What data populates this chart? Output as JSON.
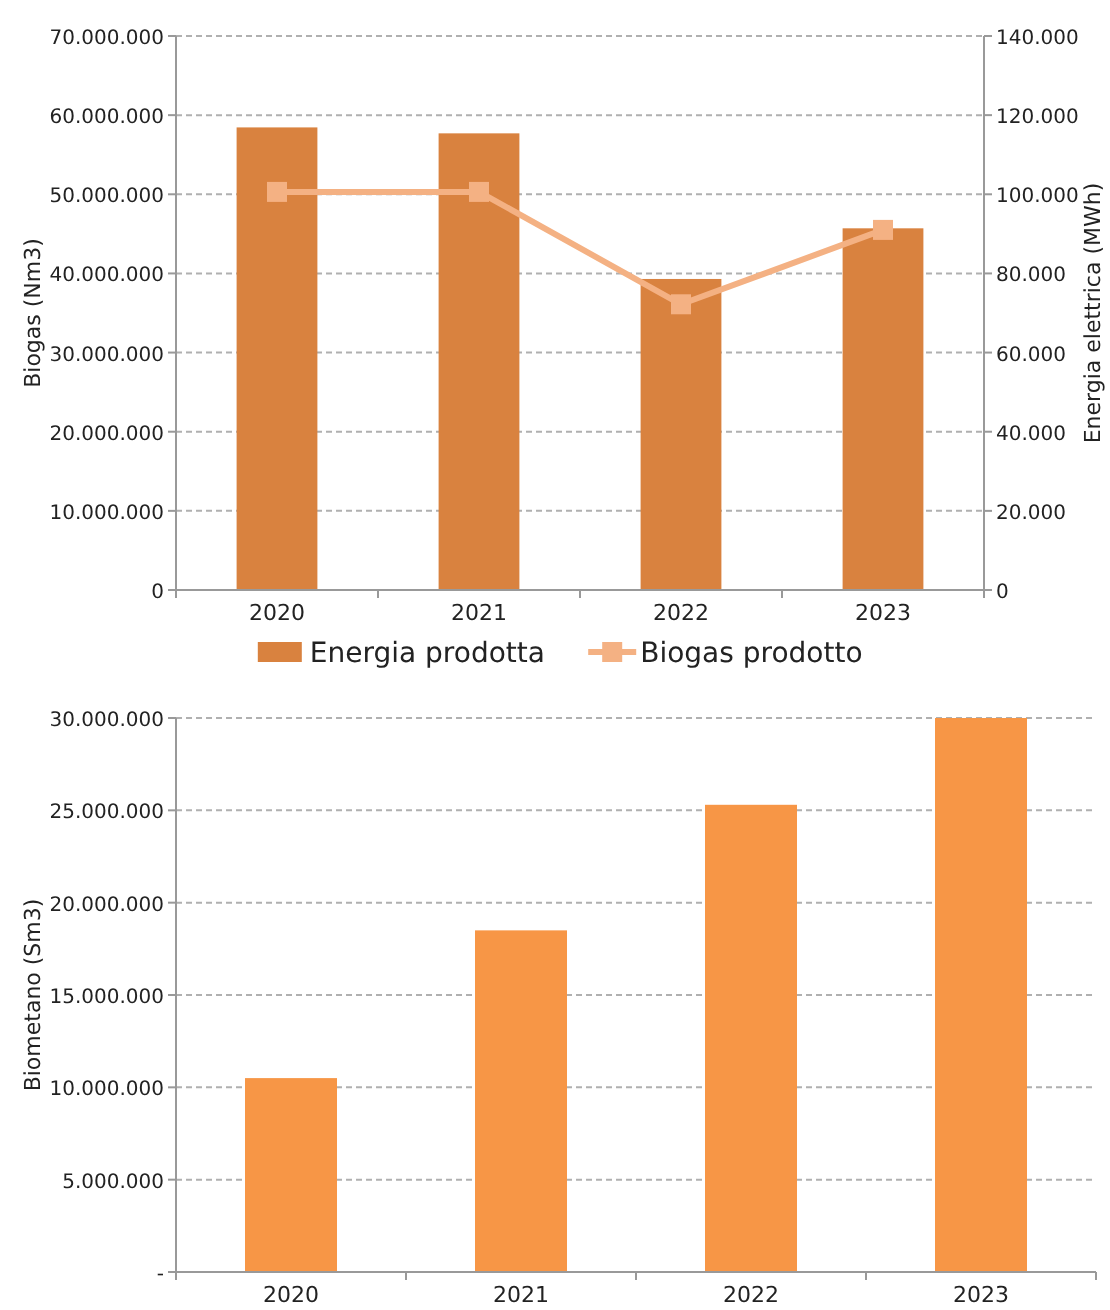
{
  "chart_data": [
    {
      "type": "bar",
      "categories": [
        "2020",
        "2021",
        "2022",
        "2023"
      ],
      "ylabel": "Biogas (Nm3)",
      "y2label": "Energia elettrica (MWh)",
      "series": [
        {
          "name": "Energia prodotta",
          "axis": "y2",
          "color": "#d9823f",
          "values": [
            116900,
            115400,
            78600,
            91400
          ]
        },
        {
          "name": "Biogas prodotto",
          "type": "line",
          "axis": "y",
          "color": "#f4b183",
          "marker": "square",
          "values": [
            50300000,
            50300000,
            36100000,
            45500000
          ]
        }
      ],
      "ylim": [
        0,
        70000000
      ],
      "yticks": [
        0,
        {
          "value": 10000000,
          "label": "10.000.000"
        },
        {
          "value": 20000000,
          "label": "20.000.000"
        },
        {
          "value": 30000000,
          "label": "30.000.000"
        },
        {
          "value": 40000000,
          "label": "40.000.000"
        },
        {
          "value": 50000000,
          "label": "50.000.000"
        },
        {
          "value": 60000000,
          "label": "60.000.000"
        },
        {
          "value": 70000000,
          "label": "70.000.000"
        }
      ],
      "y2lim": [
        0,
        140000
      ],
      "y2ticks": [
        0,
        {
          "value": 20000,
          "label": "20.000"
        },
        {
          "value": 40000,
          "label": "40.000"
        },
        {
          "value": 60000,
          "label": "60.000"
        },
        {
          "value": 80000,
          "label": "80.000"
        },
        {
          "value": 100000,
          "label": "100.000"
        },
        {
          "value": 120000,
          "label": "120.000"
        },
        {
          "value": 140000,
          "label": "140.000"
        }
      ],
      "grid": "y",
      "legend": "bottom"
    },
    {
      "type": "bar",
      "categories": [
        "2020",
        "2021",
        "2022",
        "2023"
      ],
      "ylabel": "Biometano (Sm3)",
      "color": "#f79646",
      "values": [
        10500000,
        18500000,
        25300000,
        30000000
      ],
      "ylim": [
        0,
        30000000
      ],
      "yticks": [
        {
          "value": 0,
          "label": "-"
        },
        {
          "value": 5000000,
          "label": "5.000.000"
        },
        {
          "value": 10000000,
          "label": "10.000.000"
        },
        {
          "value": 15000000,
          "label": "15.000.000"
        },
        {
          "value": 20000000,
          "label": "20.000.000"
        },
        {
          "value": 25000000,
          "label": "25.000.000"
        },
        {
          "value": 30000000,
          "label": "30.000.000"
        }
      ],
      "grid": "y"
    }
  ]
}
